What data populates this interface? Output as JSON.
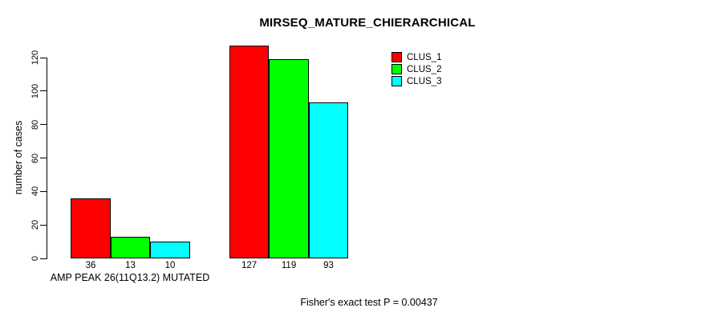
{
  "page": {
    "background_color": "#FFFFFF",
    "text_color": "#000000"
  },
  "chart_data": {
    "type": "bar",
    "title": "MIRSEQ_MATURE_CHIERARCHICAL",
    "ylabel": "number of cases",
    "xlabel": "",
    "ylim": [
      0,
      120
    ],
    "yticks": [
      0,
      20,
      40,
      60,
      80,
      100,
      120
    ],
    "grid": false,
    "bar_border_color": "#000000",
    "categories": [
      "AMP PEAK 26(11Q13.2) MUTATED",
      ""
    ],
    "group_label": "AMP PEAK 26(11Q13.2) MUTATED",
    "series": [
      {
        "name": "CLUS_1",
        "color": "#FF0000",
        "values": [
          36,
          127
        ]
      },
      {
        "name": "CLUS_2",
        "color": "#00FF00",
        "values": [
          13,
          119
        ]
      },
      {
        "name": "CLUS_3",
        "color": "#00FFFF",
        "values": [
          10,
          93
        ]
      }
    ],
    "bar_value_labels": [
      [
        "36",
        "13",
        "10"
      ],
      [
        "127",
        "119",
        "93"
      ]
    ],
    "legend": {
      "position": "top-right",
      "entries": [
        "CLUS_1",
        "CLUS_2",
        "CLUS_3"
      ]
    },
    "annotation": "Fisher's exact test P = 0.00437"
  }
}
